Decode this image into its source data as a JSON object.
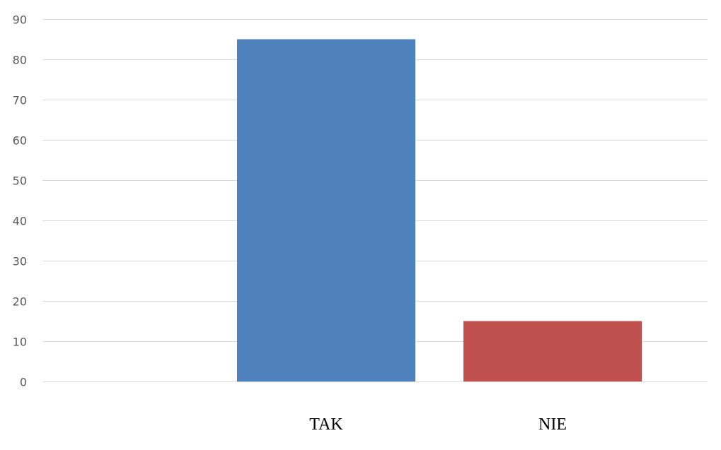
{
  "chart_data": {
    "type": "bar",
    "title": "",
    "xlabel": "",
    "ylabel": "",
    "categories": [
      "TAK",
      "NIE"
    ],
    "values": [
      85,
      15
    ],
    "bar_colors": [
      "#4f81bd",
      "#c0504d"
    ],
    "gridline_color": "#d9d9d9",
    "ylim": [
      0,
      90
    ],
    "yticks": [
      "0",
      "10",
      "20",
      "30",
      "40",
      "50",
      "60",
      "70",
      "80",
      "90"
    ],
    "grid": true,
    "legend": "none"
  }
}
